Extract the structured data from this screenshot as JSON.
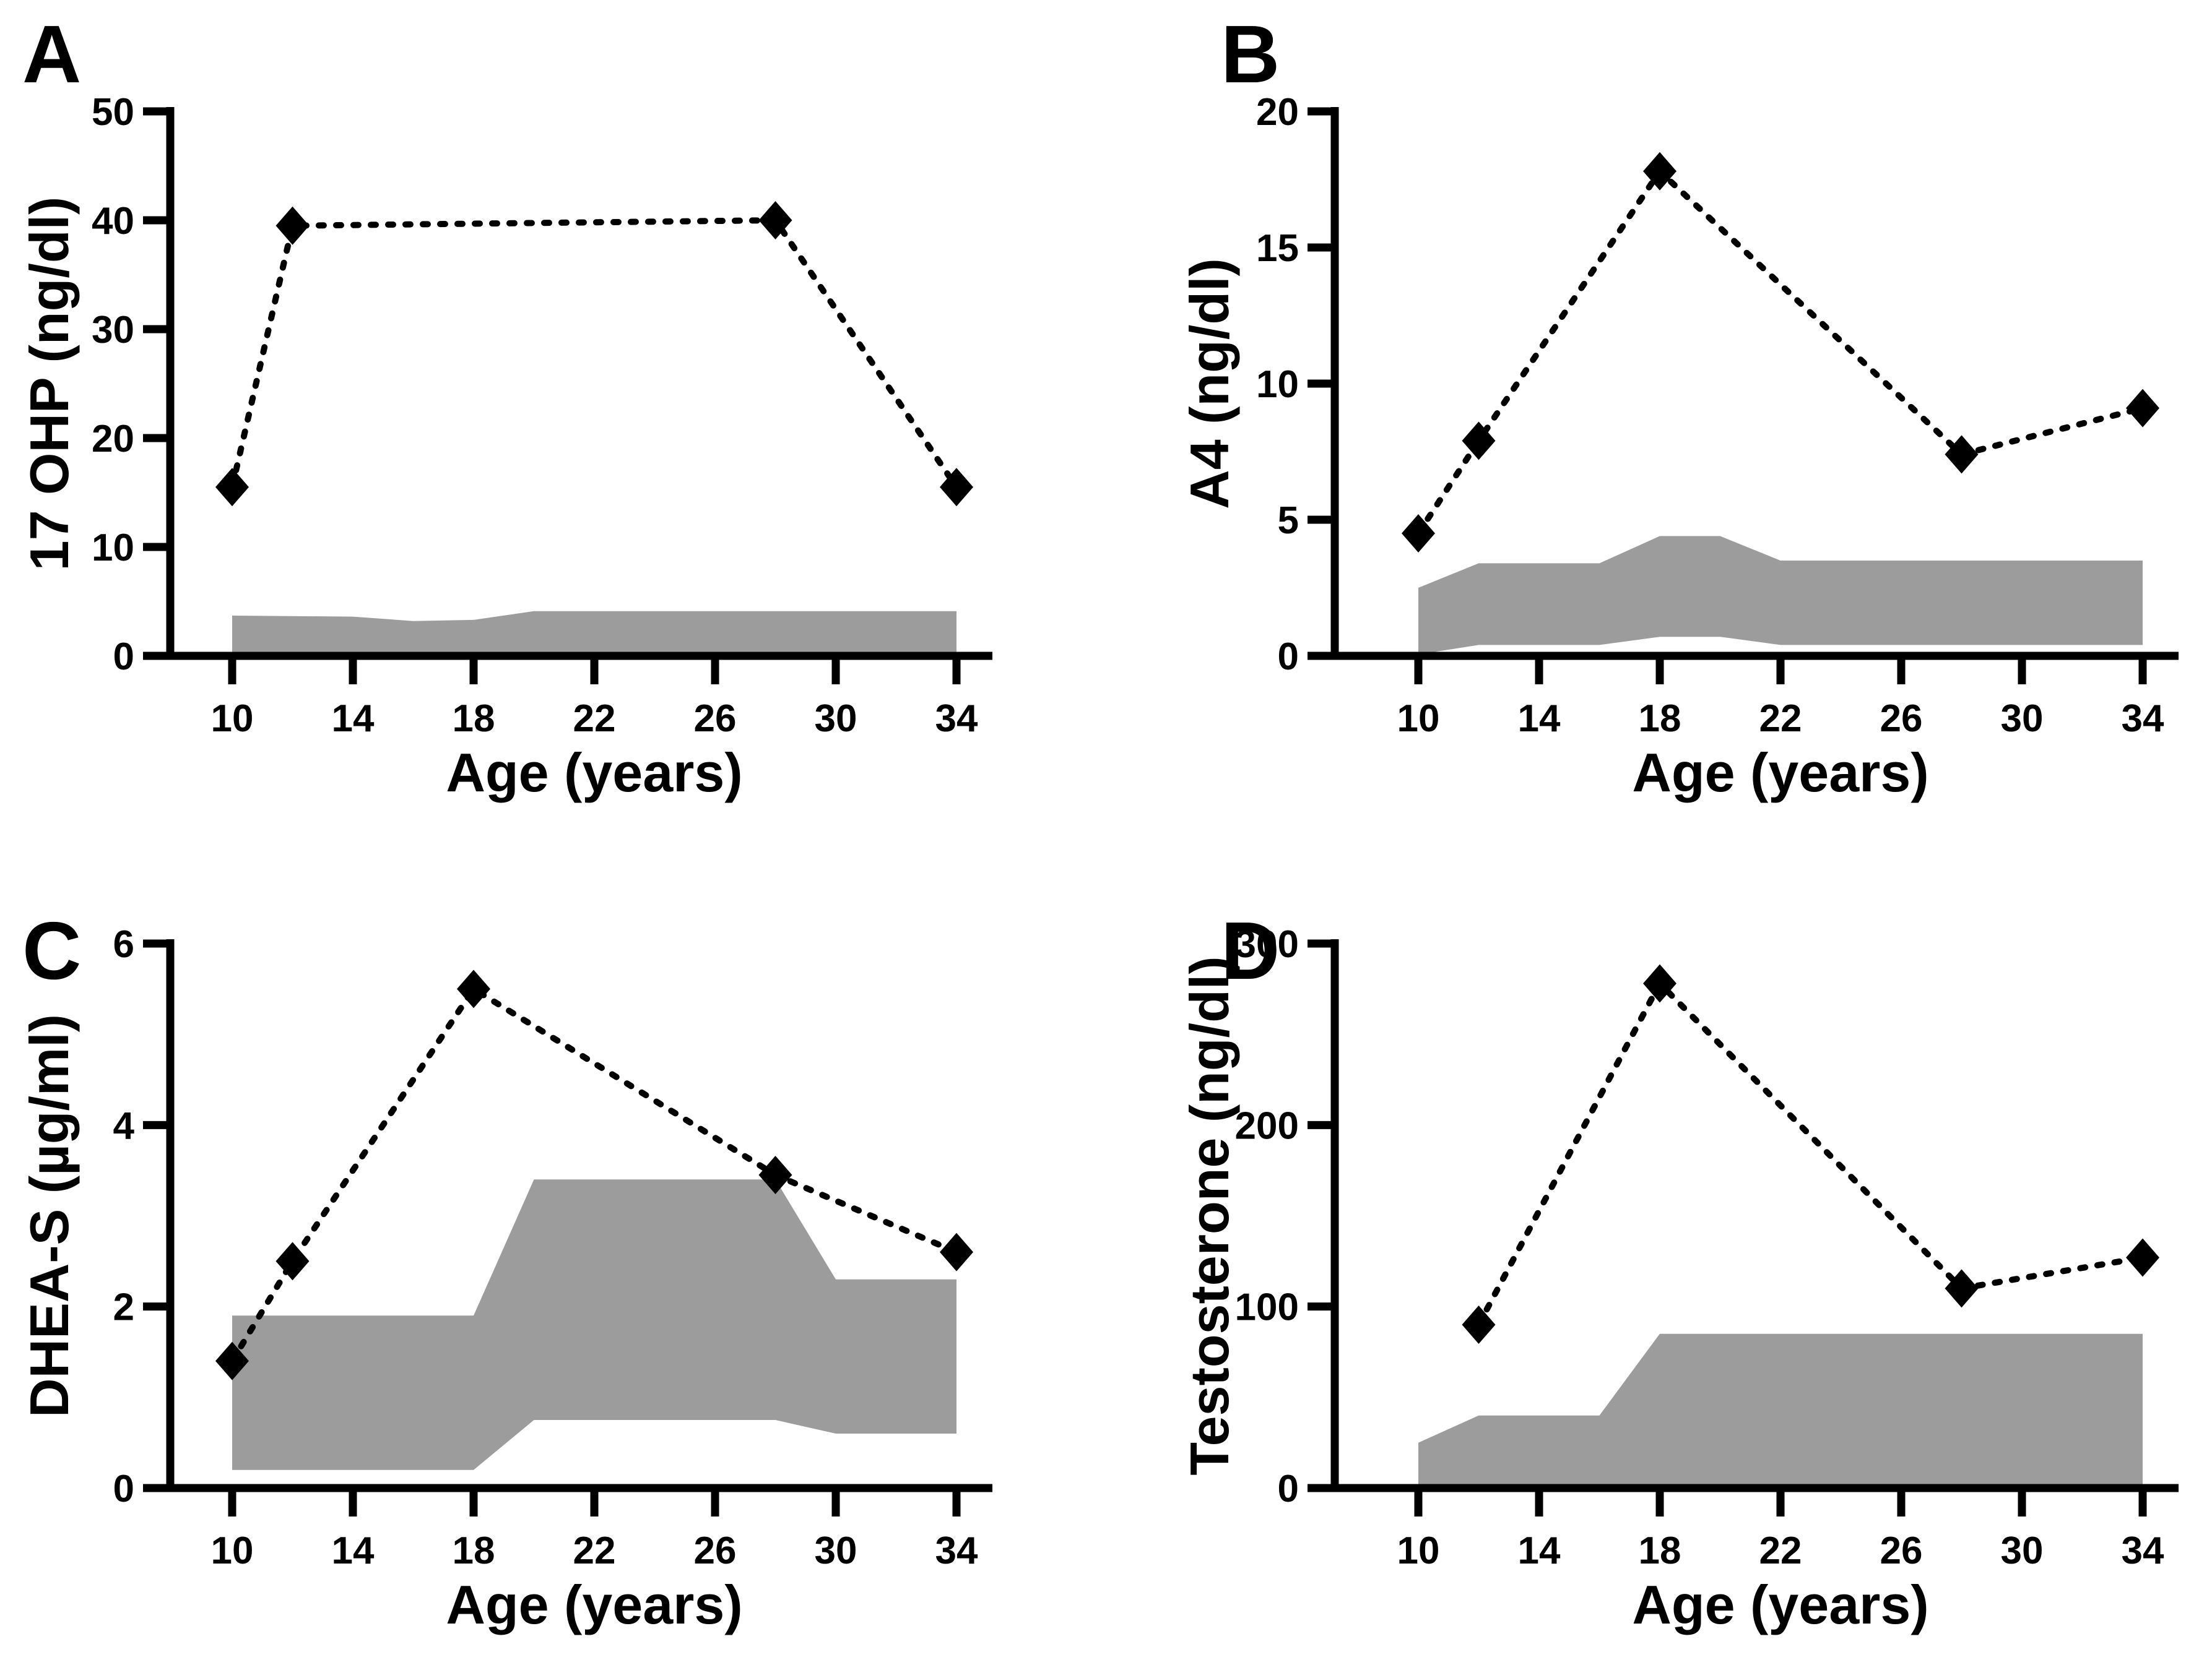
{
  "figure": {
    "background": "#ffffff",
    "band_color": "#9c9c9c",
    "line_color": "#000000",
    "marker_shape": "diamond",
    "line_style": "dotted"
  },
  "chart_data": [
    {
      "type": "line",
      "panel_label": "A",
      "xlabel": "Age (years)",
      "ylabel": "17 OHP (ng/dl)",
      "xticks": [
        10,
        14,
        18,
        22,
        26,
        30,
        34
      ],
      "yticks": [
        0,
        10,
        20,
        30,
        40,
        50
      ],
      "xlim": [
        10,
        34
      ],
      "ylim": [
        0,
        50
      ],
      "series": [
        {
          "marker": "diamond",
          "line": "dotted",
          "x": [
            10,
            12,
            28,
            34
          ],
          "y": [
            15.5,
            39.5,
            40,
            15.5
          ]
        }
      ],
      "normal_range_band": {
        "top": [
          [
            10,
            3.7
          ],
          [
            14,
            3.6
          ],
          [
            16,
            3.2
          ],
          [
            18,
            3.3
          ],
          [
            20,
            4.1
          ],
          [
            34,
            4.1
          ]
        ],
        "bottom": [
          [
            10,
            0.3
          ],
          [
            34,
            0.3
          ]
        ]
      }
    },
    {
      "type": "line",
      "panel_label": "B",
      "xlabel": "Age (years)",
      "ylabel": "A4 (ng/dl)",
      "xticks": [
        10,
        14,
        18,
        22,
        26,
        30,
        34
      ],
      "yticks": [
        0,
        5,
        10,
        15,
        20
      ],
      "xlim": [
        10,
        34
      ],
      "ylim": [
        0,
        20
      ],
      "series": [
        {
          "marker": "diamond",
          "line": "dotted",
          "x": [
            10,
            12,
            18,
            28,
            34
          ],
          "y": [
            4.5,
            7.9,
            17.8,
            7.4,
            9.1
          ]
        }
      ],
      "normal_range_band": {
        "top": [
          [
            10,
            2.5
          ],
          [
            12,
            3.4
          ],
          [
            16,
            3.4
          ],
          [
            18,
            4.4
          ],
          [
            20,
            4.4
          ],
          [
            22,
            3.5
          ],
          [
            34,
            3.5
          ]
        ],
        "bottom": [
          [
            10,
            0.05
          ],
          [
            12,
            0.4
          ],
          [
            16,
            0.4
          ],
          [
            18,
            0.7
          ],
          [
            20,
            0.7
          ],
          [
            22,
            0.4
          ],
          [
            34,
            0.4
          ]
        ]
      }
    },
    {
      "type": "line",
      "panel_label": "C",
      "xlabel": "Age (years)",
      "ylabel": "DHEA-S (µg/ml)",
      "xticks": [
        10,
        14,
        18,
        22,
        26,
        30,
        34
      ],
      "yticks": [
        0,
        2,
        4,
        6
      ],
      "xlim": [
        10,
        34
      ],
      "ylim": [
        0,
        6
      ],
      "series": [
        {
          "marker": "diamond",
          "line": "dotted",
          "x": [
            10,
            12,
            18,
            28,
            34
          ],
          "y": [
            1.4,
            2.5,
            5.5,
            3.45,
            2.6
          ]
        }
      ],
      "normal_range_band": {
        "top": [
          [
            10,
            1.9
          ],
          [
            18,
            1.9
          ],
          [
            20,
            3.4
          ],
          [
            28,
            3.4
          ],
          [
            30,
            2.3
          ],
          [
            34,
            2.3
          ]
        ],
        "bottom": [
          [
            10,
            0.2
          ],
          [
            18,
            0.2
          ],
          [
            20,
            0.75
          ],
          [
            28,
            0.75
          ],
          [
            30,
            0.6
          ],
          [
            34,
            0.6
          ]
        ]
      }
    },
    {
      "type": "line",
      "panel_label": "D",
      "xlabel": "Age (years)",
      "ylabel": "Testosterone (ng/dl)",
      "xticks": [
        10,
        14,
        18,
        22,
        26,
        30,
        34
      ],
      "yticks": [
        0,
        100,
        200,
        300
      ],
      "xlim": [
        10,
        34
      ],
      "ylim": [
        0,
        300
      ],
      "series": [
        {
          "marker": "diamond",
          "line": "dotted",
          "x": [
            12,
            18,
            28,
            34
          ],
          "y": [
            90,
            278,
            110,
            127
          ]
        }
      ],
      "normal_range_band": {
        "top": [
          [
            10,
            25
          ],
          [
            12,
            40
          ],
          [
            16,
            40
          ],
          [
            18,
            85
          ],
          [
            34,
            85
          ]
        ],
        "bottom": [
          [
            10,
            0
          ],
          [
            34,
            0
          ]
        ]
      }
    }
  ]
}
